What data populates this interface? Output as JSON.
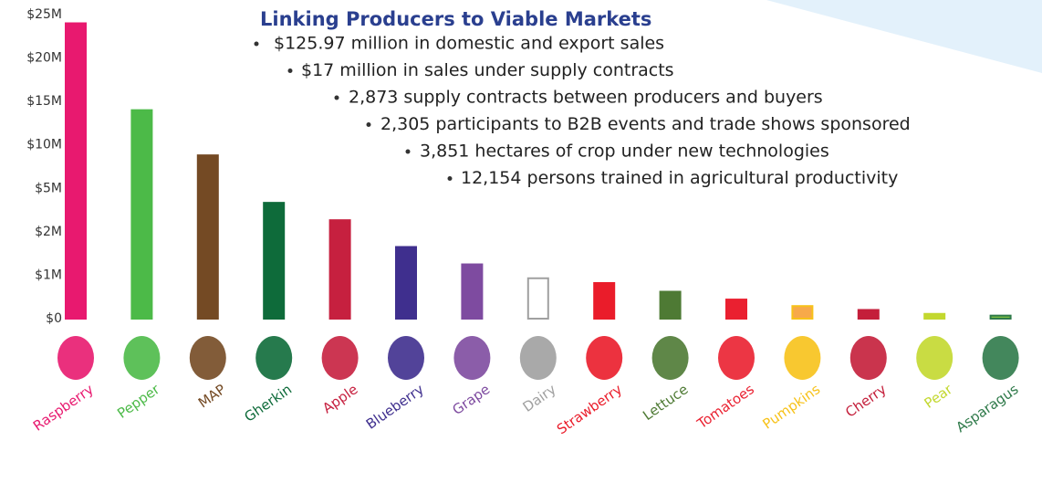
{
  "chart_data": {
    "type": "bar",
    "title": "Linking Producers to Viable Markets",
    "annotations": [
      "$125.97 million in domestic and export sales",
      "$17 million in sales under supply contracts",
      "2,873 supply contracts between producers and buyers",
      "2,305 participants to B2B events and trade shows sponsored",
      "3,851 hectares of crop under new technologies",
      "12,154 persons trained in agricultural productivity"
    ],
    "categories": [
      "Raspberry",
      "Pepper",
      "MAP",
      "Gherkin",
      "Apple",
      "Blueberry",
      "Grape",
      "Dairy",
      "Strawberry",
      "Lettuce",
      "Tomatoes",
      "Pumpkins",
      "Cherry",
      "Pear",
      "Asparagus"
    ],
    "values": [
      24000000,
      14000000,
      8800000,
      4000000,
      2800000,
      1650000,
      1250000,
      930000,
      820000,
      620000,
      440000,
      290000,
      200000,
      110000,
      70000
    ],
    "colors": [
      "#e8196f",
      "#4cba48",
      "#744a24",
      "#0e6b3a",
      "#c6203f",
      "#3f2f8e",
      "#7e4ba0",
      "#ffffff",
      "#ea1c2a",
      "#4e7a34",
      "#ea2030",
      "#f7a94a",
      "#c41e3a",
      "#c3d82f",
      "#7cc042"
    ],
    "edge_colors": [
      "#e8196f",
      "#4cba48",
      "#744a24",
      "#0e6b3a",
      "#c6203f",
      "#3f2f8e",
      "#7e4ba0",
      "#a0a0a0",
      "#ea1c2a",
      "#4e7a34",
      "#ea2030",
      "#f7c21a",
      "#c41e3a",
      "#c3d82f",
      "#2f7a4a"
    ],
    "ylim": [
      0,
      25000000
    ],
    "yticks": [
      {
        "value": 0,
        "label": "$0"
      },
      {
        "value": 1000000,
        "label": "$1M"
      },
      {
        "value": 2000000,
        "label": "$2M"
      },
      {
        "value": 5000000,
        "label": "$5M"
      },
      {
        "value": 10000000,
        "label": "$10M"
      },
      {
        "value": 15000000,
        "label": "$15M"
      },
      {
        "value": 20000000,
        "label": "$20M"
      },
      {
        "value": 25000000,
        "label": "$25M"
      }
    ]
  }
}
